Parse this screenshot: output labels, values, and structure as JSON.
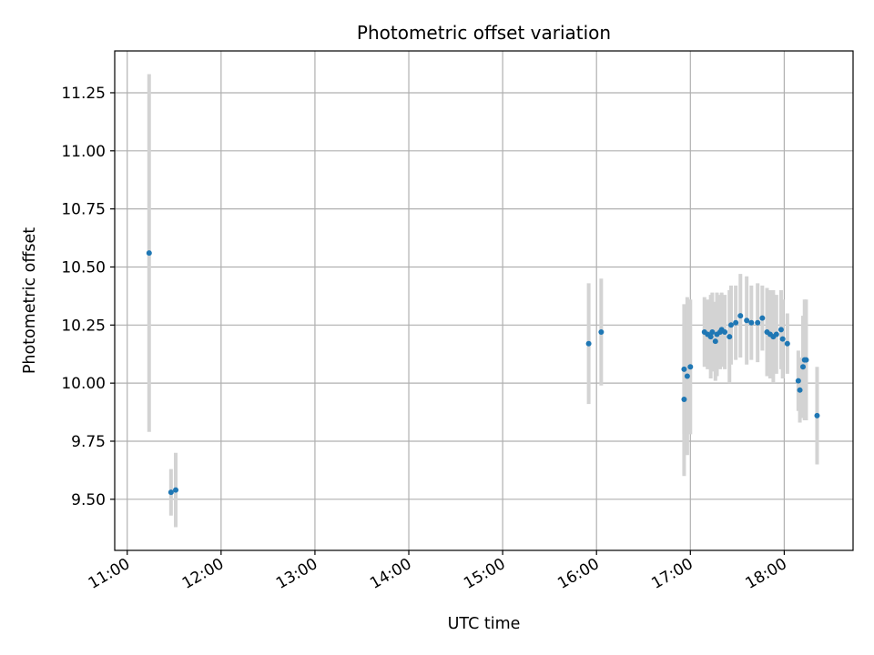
{
  "chart_data": {
    "type": "scatter",
    "title": "Photometric offset variation",
    "xlabel": "UTC time",
    "ylabel": "Photometric offset",
    "xlim": [
      "10:52",
      "18:44"
    ],
    "ylim": [
      9.28,
      11.43
    ],
    "grid": true,
    "x_ticks": [
      "11:00",
      "12:00",
      "13:00",
      "14:00",
      "15:00",
      "16:00",
      "17:00",
      "18:00"
    ],
    "y_ticks": [
      "9.50",
      "9.75",
      "10.00",
      "10.25",
      "10.50",
      "10.75",
      "11.00",
      "11.25"
    ],
    "marker_color": "#1f77b4",
    "errorbar_color": "#d3d3d3",
    "points": [
      {
        "x": "11:14",
        "y": 10.56,
        "yerr": 0.77
      },
      {
        "x": "11:28",
        "y": 9.53,
        "yerr": 0.1
      },
      {
        "x": "11:31",
        "y": 9.54,
        "yerr": 0.16
      },
      {
        "x": "15:55",
        "y": 10.17,
        "yerr": 0.26
      },
      {
        "x": "16:03",
        "y": 10.22,
        "yerr": 0.23
      },
      {
        "x": "16:56",
        "y": 9.93,
        "yerr": 0.33
      },
      {
        "x": "16:56",
        "y": 10.06,
        "yerr": 0.28
      },
      {
        "x": "16:58",
        "y": 10.03,
        "yerr": 0.34
      },
      {
        "x": "17:00",
        "y": 10.07,
        "yerr": 0.29
      },
      {
        "x": "17:09",
        "y": 10.22,
        "yerr": 0.15
      },
      {
        "x": "17:11",
        "y": 10.21,
        "yerr": 0.15
      },
      {
        "x": "17:13",
        "y": 10.2,
        "yerr": 0.18
      },
      {
        "x": "17:14",
        "y": 10.22,
        "yerr": 0.17
      },
      {
        "x": "17:16",
        "y": 10.18,
        "yerr": 0.17
      },
      {
        "x": "17:17",
        "y": 10.21,
        "yerr": 0.18
      },
      {
        "x": "17:19",
        "y": 10.22,
        "yerr": 0.16
      },
      {
        "x": "17:20",
        "y": 10.23,
        "yerr": 0.16
      },
      {
        "x": "17:22",
        "y": 10.22,
        "yerr": 0.16
      },
      {
        "x": "17:25",
        "y": 10.2,
        "yerr": 0.2
      },
      {
        "x": "17:26",
        "y": 10.25,
        "yerr": 0.17
      },
      {
        "x": "17:29",
        "y": 10.26,
        "yerr": 0.16
      },
      {
        "x": "17:32",
        "y": 10.29,
        "yerr": 0.18
      },
      {
        "x": "17:36",
        "y": 10.27,
        "yerr": 0.19
      },
      {
        "x": "17:39",
        "y": 10.26,
        "yerr": 0.16
      },
      {
        "x": "17:43",
        "y": 10.26,
        "yerr": 0.17
      },
      {
        "x": "17:46",
        "y": 10.28,
        "yerr": 0.14
      },
      {
        "x": "17:49",
        "y": 10.22,
        "yerr": 0.19
      },
      {
        "x": "17:51",
        "y": 10.21,
        "yerr": 0.19
      },
      {
        "x": "17:53",
        "y": 10.2,
        "yerr": 0.2
      },
      {
        "x": "17:55",
        "y": 10.21,
        "yerr": 0.17
      },
      {
        "x": "17:58",
        "y": 10.23,
        "yerr": 0.17
      },
      {
        "x": "17:59",
        "y": 10.19,
        "yerr": 0.17
      },
      {
        "x": "18:02",
        "y": 10.17,
        "yerr": 0.13
      },
      {
        "x": "18:09",
        "y": 10.01,
        "yerr": 0.13
      },
      {
        "x": "18:10",
        "y": 9.97,
        "yerr": 0.14
      },
      {
        "x": "18:12",
        "y": 10.07,
        "yerr": 0.22
      },
      {
        "x": "18:13",
        "y": 10.1,
        "yerr": 0.26
      },
      {
        "x": "18:14",
        "y": 10.1,
        "yerr": 0.26
      },
      {
        "x": "18:21",
        "y": 9.86,
        "yerr": 0.21
      }
    ]
  }
}
